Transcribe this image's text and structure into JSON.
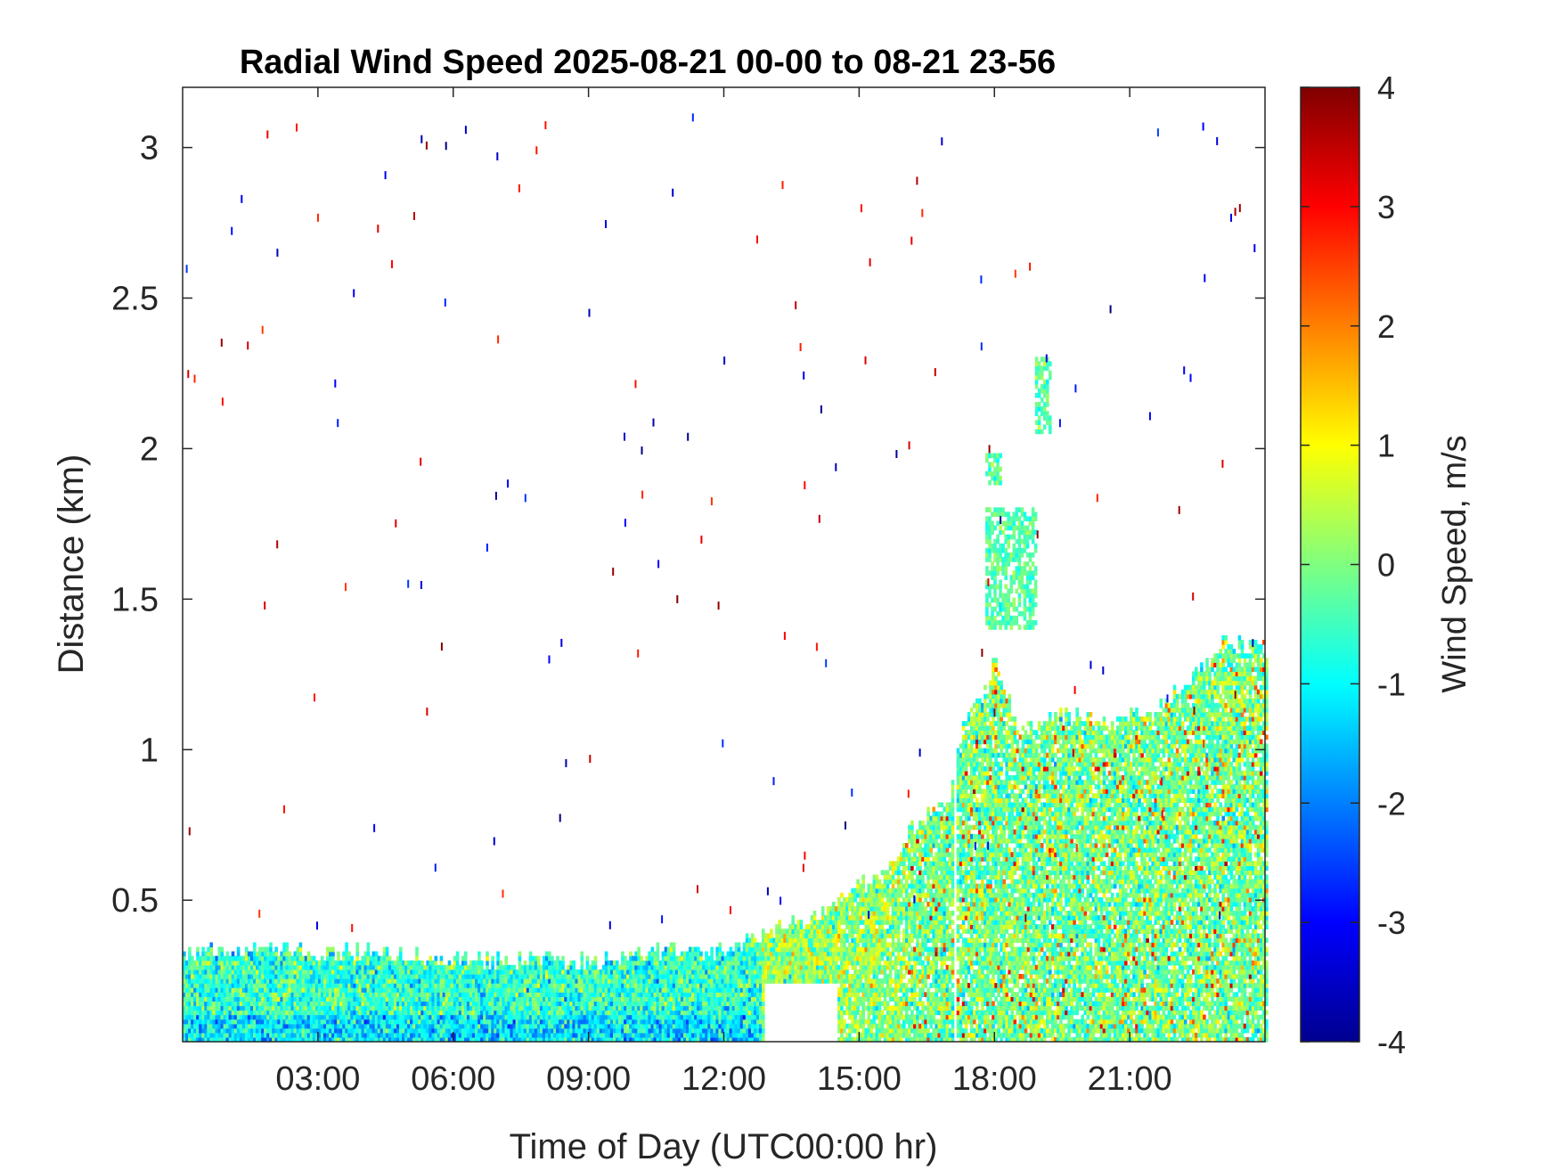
{
  "chart_data": {
    "type": "heatmap",
    "title": "Radial Wind Speed 2025-08-21 00-00 to 08-21 23-56",
    "xlabel": "Time of Day (UTC00:00 hr)",
    "ylabel": "Distance (km)",
    "colorbar_label": "Wind Speed, m/s",
    "x_unit": "hours UTC",
    "xlim": [
      0,
      24
    ],
    "ylim": [
      0.03,
      3.2
    ],
    "clim": [
      -4,
      4
    ],
    "colormap": "jet",
    "grid": false,
    "x_ticks": [
      {
        "value": 3,
        "label": "03:00"
      },
      {
        "value": 6,
        "label": "06:00"
      },
      {
        "value": 9,
        "label": "09:00"
      },
      {
        "value": 12,
        "label": "12:00"
      },
      {
        "value": 15,
        "label": "15:00"
      },
      {
        "value": 18,
        "label": "18:00"
      },
      {
        "value": 21,
        "label": "21:00"
      }
    ],
    "y_ticks": [
      {
        "value": 0.5,
        "label": "0.5"
      },
      {
        "value": 1,
        "label": "1"
      },
      {
        "value": 1.5,
        "label": "1.5"
      },
      {
        "value": 2,
        "label": "2"
      },
      {
        "value": 2.5,
        "label": "2.5"
      },
      {
        "value": 3,
        "label": "3"
      }
    ],
    "colorbar_ticks": [
      {
        "value": 4,
        "label": "4"
      },
      {
        "value": 3,
        "label": "3"
      },
      {
        "value": 2,
        "label": "2"
      },
      {
        "value": 1,
        "label": "1"
      },
      {
        "value": 0,
        "label": "0"
      },
      {
        "value": -1,
        "label": "-1"
      },
      {
        "value": -2,
        "label": "-2"
      },
      {
        "value": -3,
        "label": "-3"
      },
      {
        "value": -4,
        "label": "-4"
      }
    ],
    "echo_top_km": [
      {
        "time": 0.0,
        "top": 0.32
      },
      {
        "time": 1.0,
        "top": 0.33
      },
      {
        "time": 2.0,
        "top": 0.33
      },
      {
        "time": 3.0,
        "top": 0.32
      },
      {
        "time": 4.0,
        "top": 0.32
      },
      {
        "time": 5.0,
        "top": 0.31
      },
      {
        "time": 6.0,
        "top": 0.3
      },
      {
        "time": 7.0,
        "top": 0.29
      },
      {
        "time": 8.0,
        "top": 0.29
      },
      {
        "time": 9.0,
        "top": 0.29
      },
      {
        "time": 10.0,
        "top": 0.31
      },
      {
        "time": 11.0,
        "top": 0.33
      },
      {
        "time": 12.0,
        "top": 0.32
      },
      {
        "time": 12.8,
        "top": 0.38
      },
      {
        "time": 13.5,
        "top": 0.42
      },
      {
        "time": 14.0,
        "top": 0.43
      },
      {
        "time": 14.5,
        "top": 0.5
      },
      {
        "time": 15.0,
        "top": 0.55
      },
      {
        "time": 15.5,
        "top": 0.58
      },
      {
        "time": 16.0,
        "top": 0.7
      },
      {
        "time": 16.5,
        "top": 0.78
      },
      {
        "time": 17.0,
        "top": 0.85
      },
      {
        "time": 17.3,
        "top": 1.1
      },
      {
        "time": 17.8,
        "top": 1.2
      },
      {
        "time": 18.0,
        "top": 1.3
      },
      {
        "time": 18.5,
        "top": 1.05
      },
      {
        "time": 19.0,
        "top": 1.1
      },
      {
        "time": 19.5,
        "top": 1.1
      },
      {
        "time": 20.0,
        "top": 1.1
      },
      {
        "time": 20.5,
        "top": 1.08
      },
      {
        "time": 21.0,
        "top": 1.1
      },
      {
        "time": 21.5,
        "top": 1.12
      },
      {
        "time": 22.0,
        "top": 1.18
      },
      {
        "time": 22.5,
        "top": 1.25
      },
      {
        "time": 23.0,
        "top": 1.35
      },
      {
        "time": 24.0,
        "top": 1.33
      }
    ],
    "echo_gaps": [
      {
        "time_start": 12.85,
        "time_end": 14.5,
        "dist_start": 0.03,
        "dist_end": 0.22
      },
      {
        "time_start": 17.05,
        "time_end": 17.15,
        "dist_start": 0.03,
        "dist_end": 1.0
      }
    ],
    "elevated_echo": [
      {
        "time_start": 17.8,
        "time_end": 18.9,
        "dist_start": 1.4,
        "dist_end": 1.8
      },
      {
        "time_start": 17.8,
        "time_end": 18.1,
        "dist_start": 1.88,
        "dist_end": 1.97
      },
      {
        "time_start": 18.9,
        "time_end": 19.2,
        "dist_start": 2.05,
        "dist_end": 2.3
      }
    ],
    "mean_speed_regime_ms": [
      {
        "time_start": 0,
        "time_end": 12.8,
        "mean": -0.6
      },
      {
        "time_start": 12.8,
        "time_end": 16.0,
        "mean": 0.2
      },
      {
        "time_start": 16.0,
        "time_end": 24.0,
        "mean": -0.1
      }
    ]
  }
}
